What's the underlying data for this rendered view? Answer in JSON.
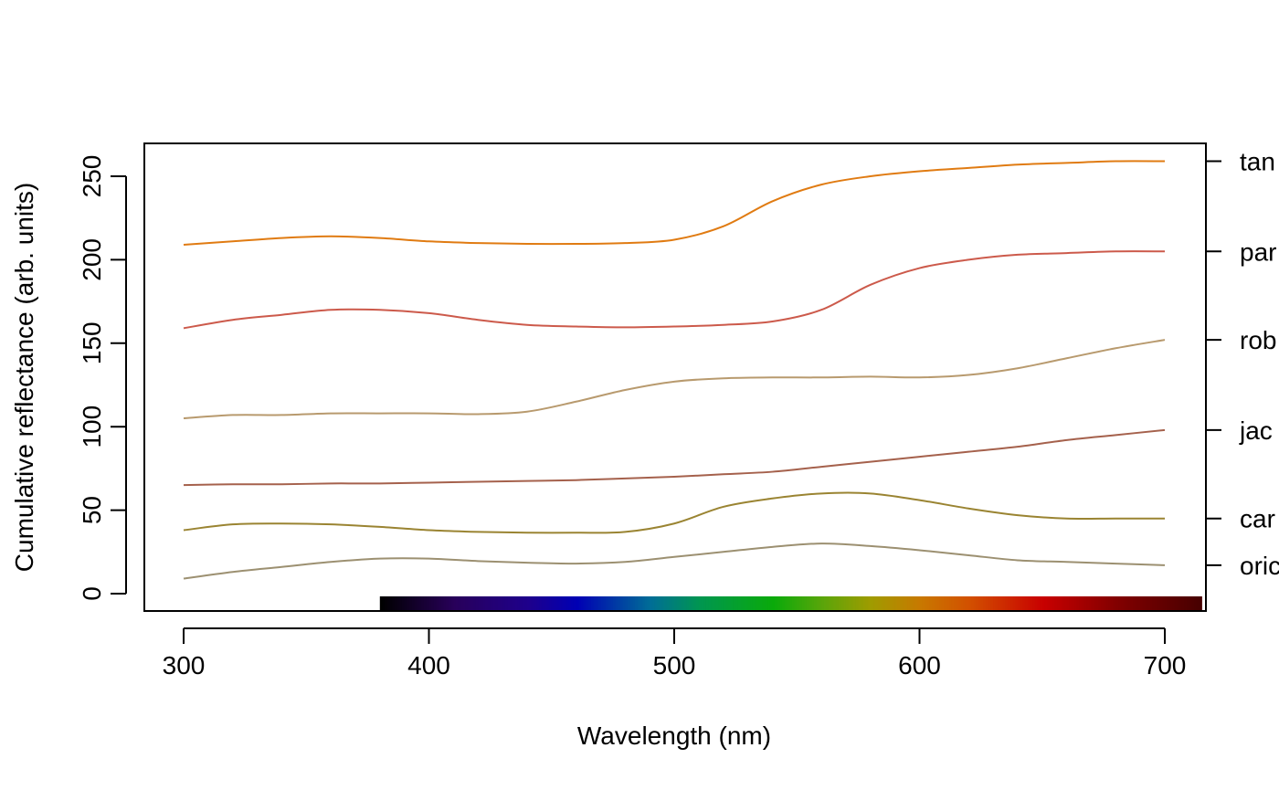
{
  "chart_data": {
    "type": "line",
    "title": "",
    "xlabel": "Wavelength (nm)",
    "ylabel": "Cumulative reflectance (arb. units)",
    "xlim": [
      300,
      700
    ],
    "ylim": [
      0,
      260
    ],
    "x_ticks": [
      "300",
      "400",
      "500",
      "600",
      "700"
    ],
    "y_ticks": [
      "0",
      "50",
      "100",
      "150",
      "200",
      "250"
    ],
    "legend": "right-side labels",
    "spectrum_bar": {
      "x_start": 380,
      "x_end": 715
    },
    "series": [
      {
        "label": "tan",
        "color": "#E07B12",
        "x": [
          300,
          320,
          340,
          360,
          380,
          400,
          420,
          440,
          460,
          480,
          500,
          520,
          540,
          560,
          580,
          600,
          620,
          640,
          660,
          680,
          700
        ],
        "y": [
          209,
          211,
          213,
          214,
          213,
          211,
          210,
          209.5,
          209.5,
          210,
          212,
          220,
          235,
          245,
          250,
          253,
          255,
          257,
          258,
          259,
          259
        ]
      },
      {
        "label": "par",
        "color": "#CC5A4B",
        "x": [
          300,
          320,
          340,
          360,
          380,
          400,
          420,
          440,
          460,
          480,
          500,
          520,
          540,
          560,
          580,
          600,
          620,
          640,
          660,
          680,
          700
        ],
        "y": [
          159,
          164,
          167,
          170,
          170,
          168,
          164,
          161,
          160,
          159.5,
          160,
          161,
          163,
          170,
          185,
          195,
          200,
          203,
          204,
          205,
          205
        ]
      },
      {
        "label": "rob",
        "color": "#B89A6E",
        "x": [
          300,
          320,
          340,
          360,
          380,
          400,
          420,
          440,
          460,
          480,
          500,
          520,
          540,
          560,
          580,
          600,
          620,
          640,
          660,
          680,
          700
        ],
        "y": [
          105,
          107,
          107,
          108,
          108,
          108,
          107.5,
          109,
          115,
          122,
          127,
          129,
          129.5,
          129.5,
          130,
          129.5,
          131,
          135,
          141,
          147,
          152
        ]
      },
      {
        "label": "jac",
        "color": "#A5614C",
        "x": [
          300,
          320,
          340,
          360,
          380,
          400,
          420,
          440,
          460,
          480,
          500,
          520,
          540,
          560,
          580,
          600,
          620,
          640,
          660,
          680,
          700
        ],
        "y": [
          65,
          65.5,
          65.5,
          66,
          66,
          66.5,
          67,
          67.5,
          68,
          69,
          70,
          71.5,
          73,
          76,
          79,
          82,
          85,
          88,
          92,
          95,
          98
        ]
      },
      {
        "label": "car",
        "color": "#9A8432",
        "x": [
          300,
          320,
          340,
          360,
          380,
          400,
          420,
          440,
          460,
          480,
          500,
          520,
          540,
          560,
          580,
          600,
          620,
          640,
          660,
          680,
          700
        ],
        "y": [
          38,
          41.5,
          42,
          41.5,
          40,
          38,
          37,
          36.5,
          36.5,
          37,
          42,
          52,
          57,
          60,
          60,
          56,
          51,
          47,
          45,
          45,
          45
        ]
      },
      {
        "label": "oric",
        "color": "#9C9071",
        "x": [
          300,
          320,
          340,
          360,
          380,
          400,
          420,
          440,
          460,
          480,
          500,
          520,
          540,
          560,
          580,
          600,
          620,
          640,
          660,
          680,
          700
        ],
        "y": [
          9,
          13,
          16,
          19,
          21,
          21,
          19.5,
          18.5,
          18,
          19,
          22,
          25,
          28,
          30,
          28.5,
          26,
          23,
          20,
          19,
          18,
          17
        ]
      }
    ]
  }
}
